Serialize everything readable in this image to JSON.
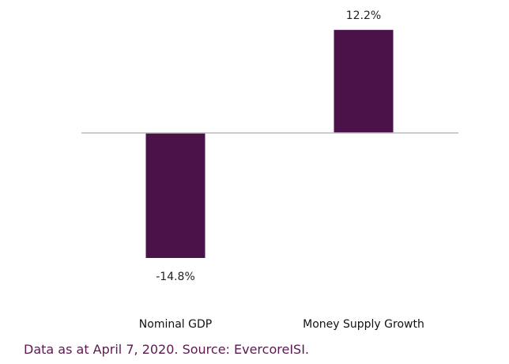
{
  "chart_data": {
    "type": "bar",
    "categories": [
      "Nominal GDP",
      "Money Supply Growth"
    ],
    "values": [
      -14.8,
      12.2
    ],
    "value_labels": [
      "-14.8%",
      "12.2%"
    ],
    "unit": "%",
    "title": "",
    "xlabel": "",
    "ylabel": "",
    "ylim": [
      -14.8,
      12.2
    ],
    "grid": false,
    "bar_color": "#4a1248",
    "zero_line_color": "#bbbbbb"
  },
  "footnote": {
    "text": "Data as at April 7, 2020. Source: EvercoreISI.",
    "color": "#5b1a4f"
  }
}
